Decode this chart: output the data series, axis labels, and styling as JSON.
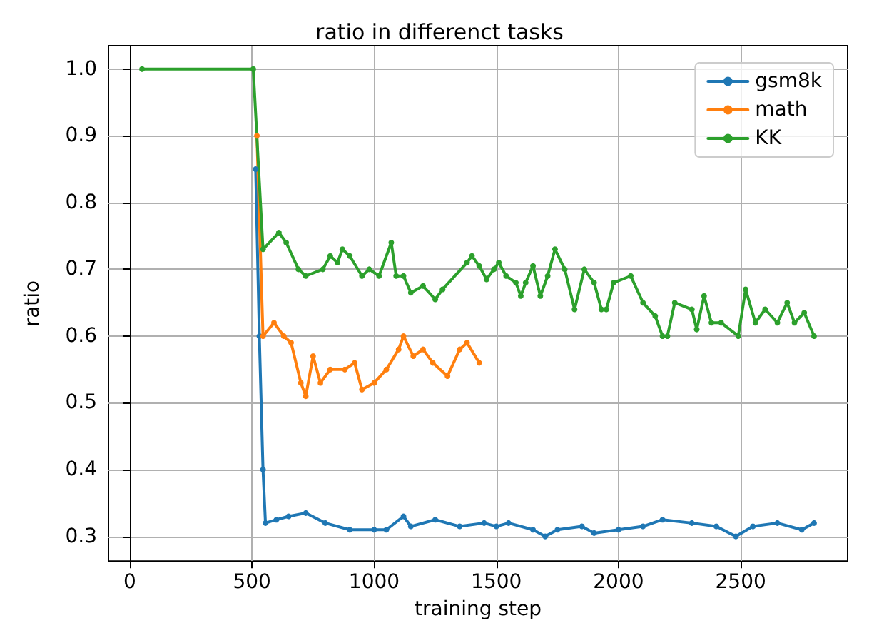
{
  "chart_data": {
    "type": "line",
    "title": "ratio in differenct tasks",
    "xlabel": "training step",
    "ylabel": "ratio",
    "xlim": [
      -87.5,
      2937.5
    ],
    "xticks": [
      0,
      500,
      1000,
      1500,
      2000,
      2500
    ],
    "ylim": [
      0.263,
      1.035
    ],
    "yticks": [
      0.3,
      0.4,
      0.5,
      0.6,
      0.7,
      0.8,
      0.9,
      {
        "value": 1.0,
        "label": "1.0"
      }
    ],
    "grid": true,
    "legend": "top right",
    "marker": "circle",
    "line_style": "solid",
    "series": [
      {
        "name": "gsm8k",
        "color": "#1f77b4",
        "x": [
          515,
          530,
          545,
          555,
          600,
          650,
          720,
          800,
          900,
          1000,
          1050,
          1120,
          1150,
          1250,
          1350,
          1450,
          1500,
          1550,
          1650,
          1700,
          1750,
          1850,
          1900,
          2000,
          2100,
          2180,
          2300,
          2400,
          2480,
          2550,
          2650,
          2750,
          2800
        ],
        "values": [
          0.85,
          0.6,
          0.4,
          0.32,
          0.325,
          0.33,
          0.335,
          0.32,
          0.31,
          0.31,
          0.31,
          0.33,
          0.315,
          0.325,
          0.315,
          0.32,
          0.315,
          0.32,
          0.31,
          0.3,
          0.31,
          0.315,
          0.305,
          0.31,
          0.315,
          0.325,
          0.32,
          0.315,
          0.3,
          0.315,
          0.32,
          0.31,
          0.32
        ]
      },
      {
        "name": "math",
        "color": "#ff7f0e",
        "x": [
          520,
          545,
          590,
          630,
          660,
          700,
          720,
          750,
          780,
          820,
          880,
          920,
          950,
          1000,
          1050,
          1100,
          1120,
          1160,
          1200,
          1240,
          1300,
          1350,
          1380,
          1430
        ],
        "values": [
          0.9,
          0.6,
          0.62,
          0.6,
          0.59,
          0.53,
          0.51,
          0.57,
          0.53,
          0.55,
          0.55,
          0.56,
          0.52,
          0.53,
          0.55,
          0.58,
          0.6,
          0.57,
          0.58,
          0.56,
          0.54,
          0.58,
          0.59,
          0.56
        ]
      },
      {
        "name": "KK",
        "color": "#2ca02c",
        "x": [
          50,
          505,
          545,
          610,
          640,
          690,
          720,
          790,
          820,
          850,
          870,
          900,
          950,
          980,
          1020,
          1070,
          1090,
          1120,
          1150,
          1200,
          1250,
          1280,
          1380,
          1400,
          1430,
          1460,
          1490,
          1510,
          1540,
          1580,
          1600,
          1620,
          1650,
          1680,
          1710,
          1740,
          1780,
          1820,
          1860,
          1900,
          1930,
          1950,
          1980,
          2050,
          2100,
          2150,
          2180,
          2200,
          2230,
          2300,
          2320,
          2350,
          2380,
          2420,
          2490,
          2520,
          2560,
          2600,
          2650,
          2690,
          2720,
          2760,
          2800
        ],
        "values": [
          1.0,
          1.0,
          0.73,
          0.755,
          0.74,
          0.7,
          0.69,
          0.7,
          0.72,
          0.71,
          0.73,
          0.72,
          0.69,
          0.7,
          0.69,
          0.74,
          0.69,
          0.69,
          0.665,
          0.675,
          0.655,
          0.67,
          0.71,
          0.72,
          0.705,
          0.685,
          0.7,
          0.71,
          0.69,
          0.68,
          0.66,
          0.68,
          0.705,
          0.66,
          0.69,
          0.73,
          0.7,
          0.64,
          0.7,
          0.68,
          0.64,
          0.64,
          0.68,
          0.69,
          0.65,
          0.63,
          0.6,
          0.6,
          0.65,
          0.64,
          0.61,
          0.66,
          0.62,
          0.62,
          0.6,
          0.67,
          0.62,
          0.64,
          0.62,
          0.65,
          0.62,
          0.635,
          0.6
        ]
      }
    ]
  }
}
